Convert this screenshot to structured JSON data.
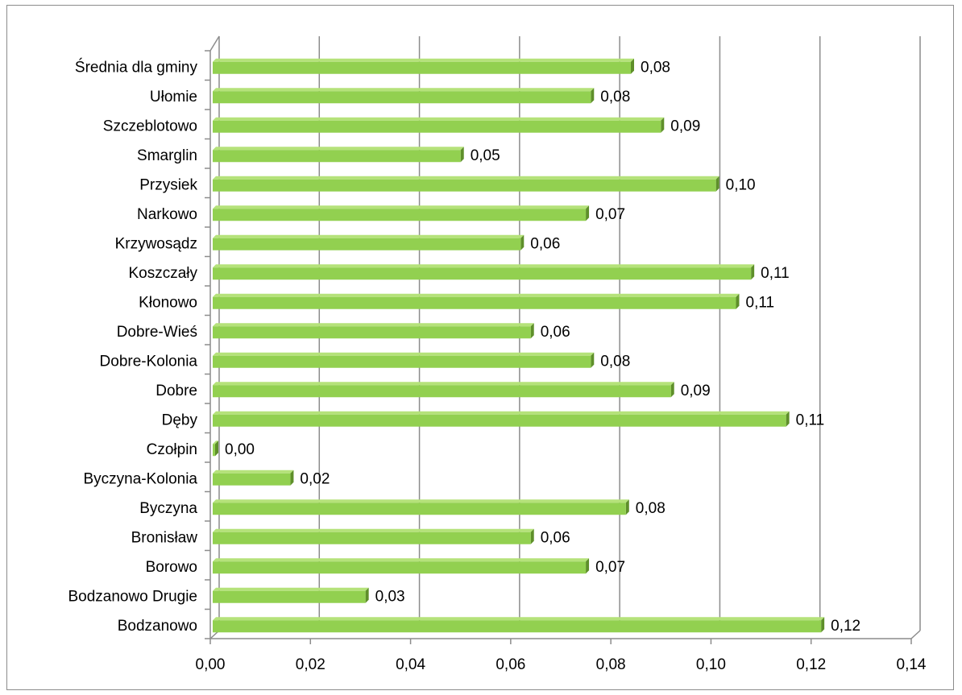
{
  "chart_data": {
    "type": "bar",
    "orientation": "horizontal",
    "title": "",
    "xlabel": "",
    "ylabel": "",
    "categories": [
      "Bodzanowo",
      "Bodzanowo Drugie",
      "Borowo",
      "Bronisław",
      "Byczyna",
      "Byczyna-Kolonia",
      "Czołpin",
      "Dęby",
      "Dobre",
      "Dobre-Kolonia",
      "Dobre-Wieś",
      "Kłonowo",
      "Koszczały",
      "Krzywosądz",
      "Narkowo",
      "Przysiek",
      "Smarglin",
      "Szczeblotowo",
      "Ułomie",
      "Średnia dla gminy"
    ],
    "values": [
      0.122,
      0.031,
      0.075,
      0.064,
      0.083,
      0.016,
      0.0,
      0.115,
      0.092,
      0.076,
      0.064,
      0.105,
      0.108,
      0.062,
      0.075,
      0.101,
      0.05,
      0.09,
      0.076,
      0.084
    ],
    "data_labels": [
      "0,12",
      "0,03",
      "0,07",
      "0,06",
      "0,08",
      "0,02",
      "0,00",
      "0,11",
      "0,09",
      "0,08",
      "0,06",
      "0,11",
      "0,11",
      "0,06",
      "0,07",
      "0,10",
      "0,05",
      "0,09",
      "0,08",
      "0,08"
    ],
    "xlim": [
      0,
      0.14
    ],
    "x_ticks": [
      0,
      0.02,
      0.04,
      0.06,
      0.08,
      0.1,
      0.12,
      0.14
    ],
    "x_tick_labels": [
      "0,00",
      "0,02",
      "0,04",
      "0,06",
      "0,08",
      "0,10",
      "0,12",
      "0,14"
    ],
    "grid": "vertical",
    "legend": "none",
    "colors": {
      "bar": "#92d050",
      "bar_top": "#b5e27a",
      "bar_side": "#5e8f2a",
      "grid": "#8c8c8c",
      "axis": "#8c8c8c"
    }
  }
}
